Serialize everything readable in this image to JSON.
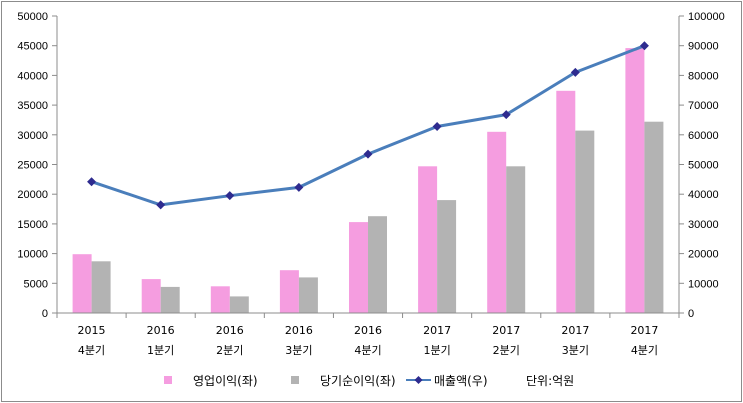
{
  "chart_data": {
    "type": "bar",
    "categories": [
      [
        "2015",
        "4분기"
      ],
      [
        "2016",
        "1분기"
      ],
      [
        "2016",
        "2분기"
      ],
      [
        "2016",
        "3분기"
      ],
      [
        "2016",
        "4분기"
      ],
      [
        "2017",
        "1분기"
      ],
      [
        "2017",
        "2분기"
      ],
      [
        "2017",
        "3분기"
      ],
      [
        "2017",
        "4분기"
      ]
    ],
    "series": [
      {
        "name": "영업이익(좌)",
        "type": "bar",
        "axis": "left",
        "color": "#f59de0",
        "values": [
          9900,
          5700,
          4500,
          7200,
          15300,
          24700,
          30500,
          37400,
          44600
        ]
      },
      {
        "name": "당기순이익(좌)",
        "type": "bar",
        "axis": "left",
        "color": "#b3b3b3",
        "values": [
          8700,
          4400,
          2800,
          6000,
          16300,
          19000,
          24700,
          30700,
          32200
        ]
      },
      {
        "name": "매출액(우)",
        "type": "line",
        "axis": "right",
        "color": "#4a7ebb",
        "marker_color": "#2e2b8f",
        "values": [
          44200,
          36400,
          39500,
          42300,
          53500,
          62800,
          66800,
          81000,
          90000
        ]
      }
    ],
    "left_axis": {
      "min": 0,
      "max": 50000,
      "step": 5000,
      "ticks": [
        "0",
        "5000",
        "10000",
        "15000",
        "20000",
        "25000",
        "30000",
        "35000",
        "40000",
        "45000",
        "50000"
      ]
    },
    "right_axis": {
      "min": 0,
      "max": 100000,
      "step": 10000,
      "ticks": [
        "0",
        "10000",
        "20000",
        "30000",
        "40000",
        "50000",
        "60000",
        "70000",
        "80000",
        "90000",
        "100000"
      ]
    },
    "unit_note": "단위:억원",
    "grid": false,
    "legend_position": "bottom"
  }
}
